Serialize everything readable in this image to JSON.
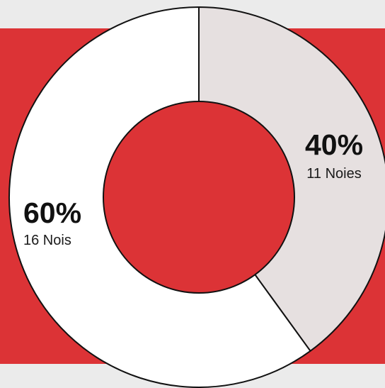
{
  "chart_data": {
    "type": "pie",
    "variant": "donut",
    "slices": [
      {
        "value": 60,
        "percent_label": "60%",
        "sub_label": "16 Nois",
        "color": "#ffffff"
      },
      {
        "value": 40,
        "percent_label": "40%",
        "sub_label": "11 Noies",
        "color": "#e6e0e0"
      }
    ],
    "title": ""
  },
  "colors": {
    "page_background": "#ebebeb",
    "band": "#dc3336",
    "donut_hole": "#dc3336",
    "outline": "#111111"
  }
}
